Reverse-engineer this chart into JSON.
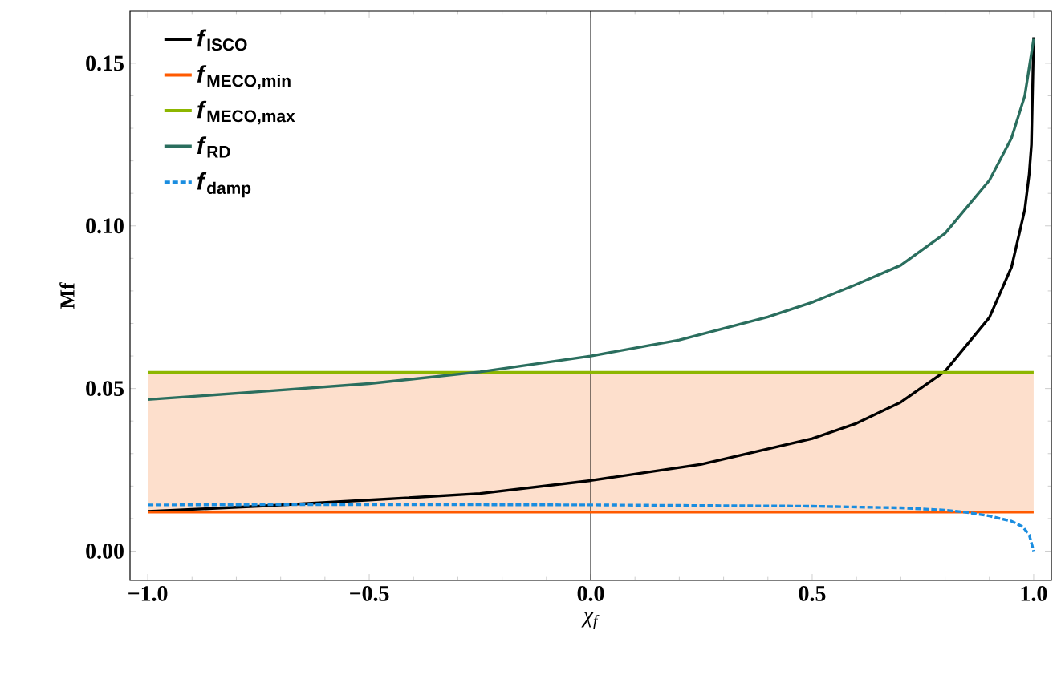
{
  "chart_data": {
    "type": "line",
    "xlabel": "χ$_{f}$",
    "ylabel": "Mf",
    "xlim": [
      -1.04,
      1.04
    ],
    "ylim": [
      -0.009,
      0.166
    ],
    "xticks": [
      {
        "value": -1,
        "label": "−1.0"
      },
      {
        "value": -0.5,
        "label": "−0.5"
      },
      {
        "value": 0,
        "label": "0.0"
      },
      {
        "value": 0.5,
        "label": "0.5"
      },
      {
        "value": 1,
        "label": "1.0"
      }
    ],
    "yticks": [
      {
        "value": 0,
        "label": "0.00"
      },
      {
        "value": 0.05,
        "label": "0.05"
      },
      {
        "value": 0.1,
        "label": "0.10"
      },
      {
        "value": 0.15,
        "label": "0.15"
      }
    ],
    "grid": false,
    "legend": "top left",
    "marker": "none",
    "series": [
      {
        "name": "*f*$_{ISCO}$",
        "color": "#000000",
        "line_style": "solid",
        "x": [
          -1,
          -0.75,
          -0.5,
          -0.25,
          0,
          0.25,
          0.5,
          0.6,
          0.7,
          0.8,
          0.9,
          0.95,
          0.98,
          0.99,
          0.995,
          1
        ],
        "values": [
          0.0122,
          0.0138,
          0.0157,
          0.0177,
          0.0217,
          0.0267,
          0.0346,
          0.0393,
          0.0458,
          0.0553,
          0.0718,
          0.0873,
          0.105,
          0.116,
          0.125,
          0.158
        ]
      },
      {
        "name": "*f*$_{MECO,min}$",
        "color": "#ff5a00",
        "line_style": "solid",
        "x": [
          -1,
          1
        ],
        "values": [
          0.012,
          0.012
        ]
      },
      {
        "name": "*f*$_{MECO,max}$",
        "color": "#8db600",
        "line_style": "solid",
        "x": [
          -1,
          1
        ],
        "values": [
          0.055,
          0.055
        ]
      },
      {
        "name": "*f*$_{RD}$",
        "color": "#2a6e5e",
        "line_style": "solid",
        "x": [
          -1,
          -0.75,
          -0.5,
          -0.25,
          0,
          0.2,
          0.4,
          0.5,
          0.6,
          0.7,
          0.8,
          0.9,
          0.95,
          0.98,
          1
        ],
        "values": [
          0.0466,
          0.049,
          0.0515,
          0.0551,
          0.06,
          0.0649,
          0.072,
          0.0765,
          0.082,
          0.0879,
          0.0977,
          0.114,
          0.127,
          0.14,
          0.1575
        ]
      },
      {
        "name": "*f*$_{damp}$",
        "color": "#1a8de0",
        "line_style": "dashed",
        "x": [
          -1,
          -0.5,
          0,
          0.5,
          0.7,
          0.8,
          0.85,
          0.9,
          0.95,
          0.975,
          0.99,
          1
        ],
        "values": [
          0.0142,
          0.0143,
          0.0142,
          0.0138,
          0.0133,
          0.0126,
          0.0119,
          0.0108,
          0.0092,
          0.0075,
          0.005,
          0.0
        ]
      }
    ],
    "bands": [
      {
        "axis": "y",
        "from": 0.012,
        "to": 0.055,
        "color": "#fddfcc"
      }
    ],
    "ref_lines": [
      {
        "axis": "x",
        "value": 0,
        "color": "#000000",
        "line_style": "solid"
      }
    ]
  }
}
